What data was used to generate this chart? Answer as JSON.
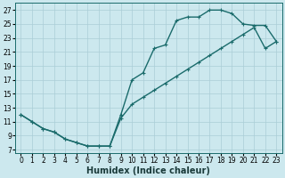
{
  "xlabel": "Humidex (Indice chaleur)",
  "background_color": "#cce8ee",
  "grid_color": "#aacdd6",
  "line_color": "#1a6b6b",
  "xlim": [
    -0.5,
    23.5
  ],
  "ylim": [
    6.5,
    28
  ],
  "xticks": [
    0,
    1,
    2,
    3,
    4,
    5,
    6,
    7,
    8,
    9,
    10,
    11,
    12,
    13,
    14,
    15,
    16,
    17,
    18,
    19,
    20,
    21,
    22,
    23
  ],
  "yticks": [
    7,
    9,
    11,
    13,
    15,
    17,
    19,
    21,
    23,
    25,
    27
  ],
  "curve1_x": [
    0,
    1,
    2,
    3,
    4,
    5,
    6,
    7,
    8,
    9,
    10,
    11,
    12,
    13,
    14,
    15,
    16,
    17,
    18,
    19,
    20,
    21,
    22,
    23
  ],
  "curve1_y": [
    12,
    11,
    10,
    9.5,
    8.5,
    8,
    7.5,
    7.5,
    7.5,
    12,
    17,
    18,
    21.5,
    22,
    25.5,
    26,
    26,
    27,
    27,
    26.5,
    25,
    24.8,
    24.8,
    22.5
  ],
  "curve2_x": [
    0,
    1,
    2,
    3,
    4,
    5,
    6,
    7,
    8,
    9,
    10,
    11,
    12,
    13,
    14,
    15,
    16,
    17,
    18,
    19,
    20,
    21,
    22,
    23
  ],
  "curve2_y": [
    12,
    11,
    10,
    9.5,
    8.5,
    8,
    7.5,
    7.5,
    7.5,
    11.5,
    13.5,
    14.5,
    15.5,
    16.5,
    17.5,
    18.5,
    19.5,
    20.5,
    21.5,
    22.5,
    23.5,
    24.5,
    21.5,
    22.5
  ],
  "markersize": 3,
  "linewidth": 1.0,
  "xlabel_fontsize": 7,
  "tick_fontsize": 5.5
}
